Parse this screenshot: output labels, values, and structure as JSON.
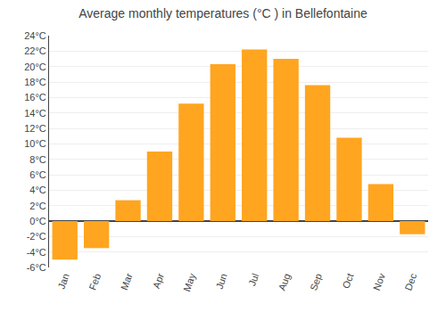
{
  "chart_data": {
    "type": "bar",
    "title": "Average monthly temperatures (°C ) in Bellefontaine",
    "categories": [
      "Jan",
      "Feb",
      "Mar",
      "Apr",
      "May",
      "Jun",
      "Jul",
      "Aug",
      "Sep",
      "Oct",
      "Nov",
      "Dec"
    ],
    "values": [
      -5.0,
      -3.5,
      2.7,
      9.0,
      15.2,
      20.3,
      22.2,
      21.0,
      17.6,
      10.8,
      4.8,
      -1.7
    ],
    "color": "#FFA520",
    "ylim": [
      -6,
      24
    ],
    "yticks": [
      {
        "value": -6,
        "label": "-6°C"
      },
      {
        "value": -4,
        "label": "-4°C"
      },
      {
        "value": -2,
        "label": "-2°C"
      },
      {
        "value": 0,
        "label": "0°C"
      },
      {
        "value": 2,
        "label": "2°C"
      },
      {
        "value": 4,
        "label": "4°C"
      },
      {
        "value": 6,
        "label": "6°C"
      },
      {
        "value": 8,
        "label": "8°C"
      },
      {
        "value": 10,
        "label": "10°C"
      },
      {
        "value": 12,
        "label": "12°C"
      },
      {
        "value": 14,
        "label": "14°C"
      },
      {
        "value": 16,
        "label": "16°C"
      },
      {
        "value": 18,
        "label": "18°C"
      },
      {
        "value": 20,
        "label": "20°C"
      },
      {
        "value": 22,
        "label": "22°C"
      },
      {
        "value": 24,
        "label": "24°C"
      }
    ],
    "grid": true
  }
}
